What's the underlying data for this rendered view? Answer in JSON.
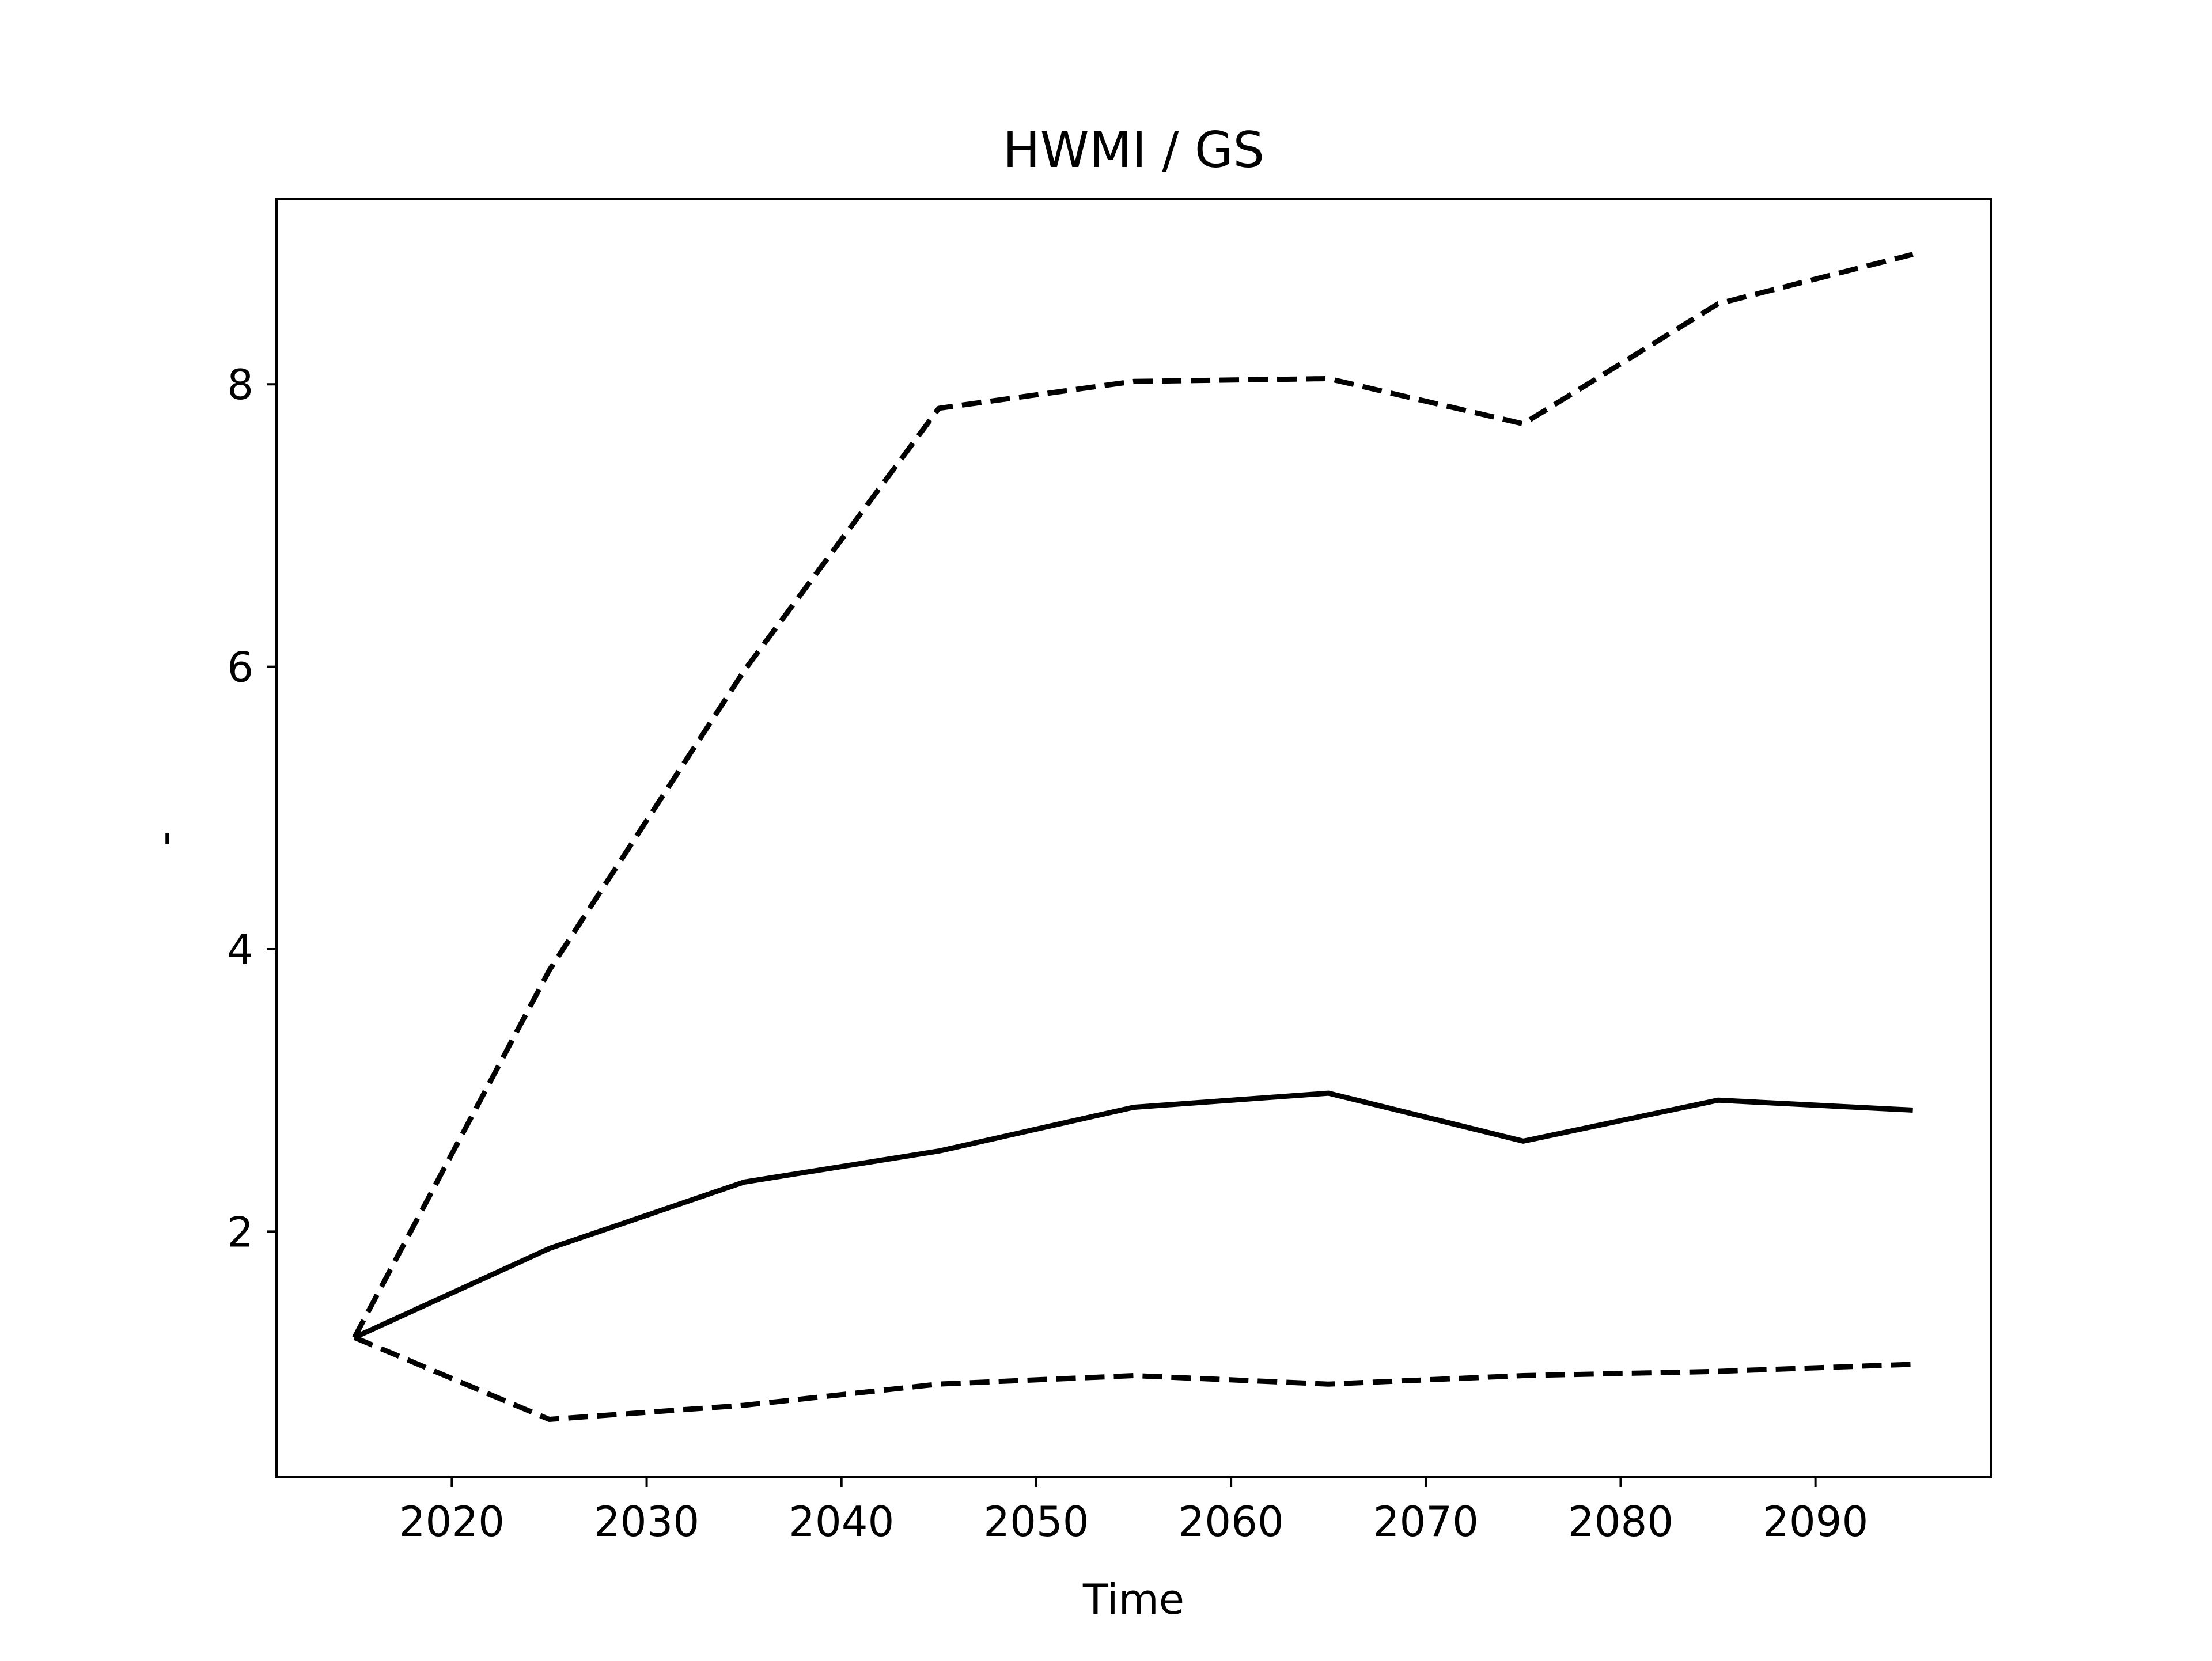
{
  "chart_data": {
    "type": "line",
    "title": "HWMI / GS",
    "xlabel": "Time",
    "ylabel": "-",
    "x": [
      2015,
      2025,
      2035,
      2045,
      2055,
      2065,
      2075,
      2085,
      2095
    ],
    "series": [
      {
        "style": "solid",
        "values": [
          1.25,
          1.88,
          2.35,
          2.57,
          2.88,
          2.98,
          2.64,
          2.93,
          2.86
        ]
      },
      {
        "style": "dashed",
        "values": [
          1.25,
          3.85,
          5.97,
          7.83,
          8.02,
          8.04,
          7.72,
          8.57,
          8.92
        ]
      },
      {
        "style": "dashed",
        "values": [
          1.25,
          0.67,
          0.77,
          0.92,
          0.98,
          0.92,
          0.98,
          1.01,
          1.06
        ]
      }
    ],
    "xlim": [
      2011,
      2099
    ],
    "ylim": [
      0.26,
      9.31
    ],
    "xticks": [
      2020,
      2030,
      2040,
      2050,
      2060,
      2070,
      2080,
      2090
    ],
    "yticks": [
      2,
      4,
      6,
      8
    ],
    "grid": false,
    "legend": "none",
    "line_color": "#000000"
  }
}
